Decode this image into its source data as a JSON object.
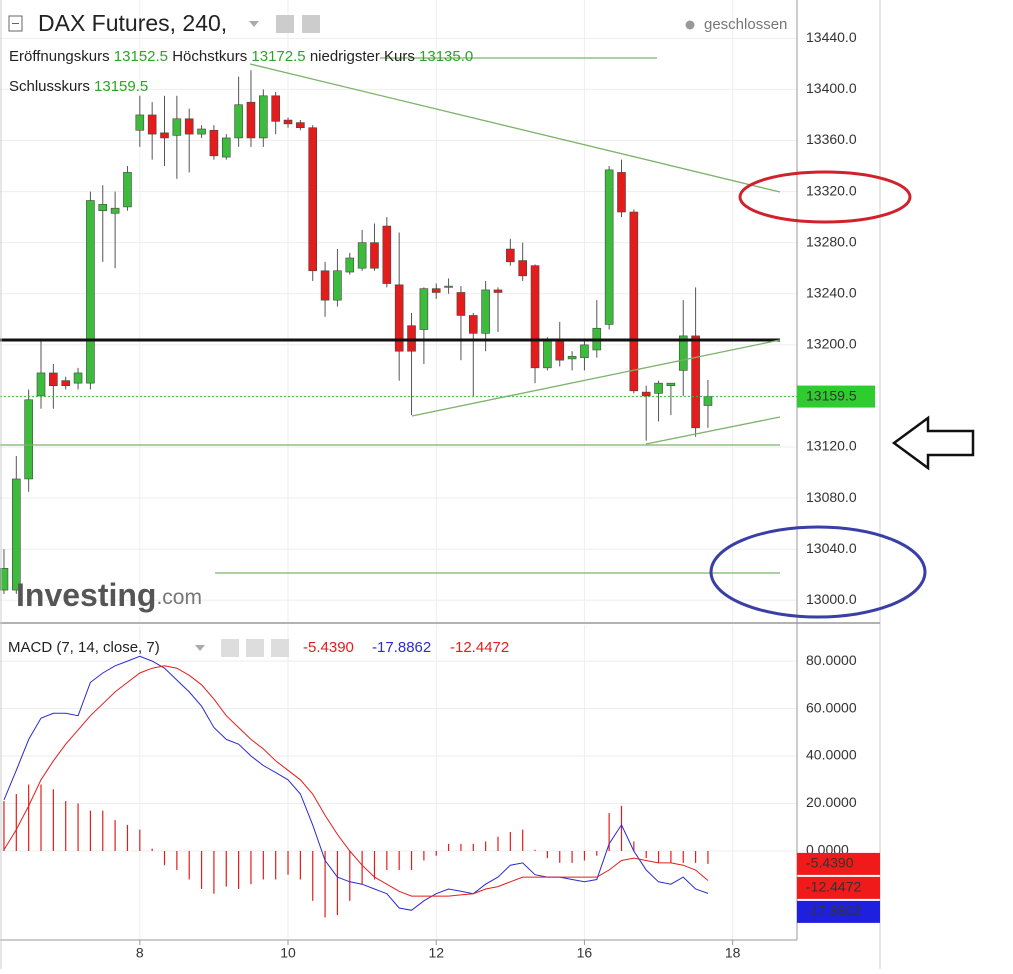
{
  "header": {
    "title": "DAX Futures, 240,",
    "status": "geschlossen",
    "open_label": "Eröffnungskurs",
    "open": "13152.5",
    "high_label": "Höchstkurs",
    "high": "13172.5",
    "low_label": "niedrigster Kurs",
    "low": "13135.0",
    "close_label": "Schlusskurs",
    "close": "13159.5"
  },
  "watermark": {
    "brand": "Investing",
    "suffix": ".com"
  },
  "chart_data": [
    {
      "type": "candlestick",
      "title": "DAX Futures, 240,",
      "up_color": "#3dbb3d",
      "down_color": "#e51c1c",
      "open": [
        13008,
        13008,
        13095,
        13160,
        13178,
        13172,
        13170,
        13170,
        13305,
        13303,
        13308,
        13368,
        13380,
        13366,
        13364,
        13377,
        13365,
        13368,
        13347,
        13362,
        13390,
        13362,
        13395,
        13376,
        13374,
        13370,
        13258,
        13235,
        13257,
        13260,
        13280,
        13293,
        13247,
        13215,
        13212,
        13244,
        13245,
        13241,
        13223,
        13209,
        13243,
        13275,
        13266,
        13262,
        13182,
        13204,
        13189,
        13190,
        13196,
        13216,
        13335,
        13304,
        13163,
        13162,
        13168,
        13180,
        13207,
        13152.5
      ],
      "high": [
        13040,
        13113,
        13165,
        13205,
        13185,
        13175,
        13182,
        13320,
        13325,
        13320,
        13340,
        13395,
        13390,
        13395,
        13395,
        13385,
        13372,
        13372,
        13365,
        13410,
        13415,
        13400,
        13398,
        13378,
        13376,
        13372,
        13265,
        13275,
        13272,
        13290,
        13295,
        13300,
        13288,
        13225,
        13245,
        13248,
        13252,
        13246,
        13225,
        13250,
        13245,
        13283,
        13280,
        13263,
        13206,
        13218,
        13195,
        13205,
        13235,
        13340,
        13345,
        13306,
        13168,
        13172,
        13170,
        13235,
        13245,
        13172.5
      ],
      "low": [
        13005,
        13005,
        13085,
        13150,
        13150,
        13165,
        13165,
        13165,
        13265,
        13260,
        13305,
        13355,
        13345,
        13340,
        13330,
        13335,
        13362,
        13345,
        13345,
        13355,
        13355,
        13355,
        13365,
        13370,
        13368,
        13250,
        13222,
        13230,
        13255,
        13258,
        13258,
        13245,
        13172,
        13145,
        13185,
        13236,
        13240,
        13188,
        13160,
        13195,
        13210,
        13262,
        13250,
        13170,
        13180,
        13183,
        13180,
        13180,
        13190,
        13212,
        13300,
        13162,
        13125,
        13140,
        13145,
        13160,
        13128,
        13135
      ],
      "close": [
        13025,
        13095,
        13157,
        13178,
        13168,
        13168,
        13178,
        13313,
        13310,
        13307,
        13335,
        13380,
        13365,
        13362,
        13377,
        13365,
        13369,
        13348,
        13362,
        13388,
        13362,
        13395,
        13375,
        13373,
        13370,
        13258,
        13235,
        13258,
        13268,
        13280,
        13260,
        13248,
        13195,
        13195,
        13244,
        13241,
        13246,
        13223,
        13209,
        13243,
        13241,
        13265,
        13254,
        13182,
        13204,
        13188,
        13191,
        13200,
        13213,
        13337,
        13304,
        13164,
        13160,
        13170,
        13170,
        13207,
        13135,
        13159.5
      ],
      "xlim": [
        -0.32,
        64.21
      ],
      "ylim": [
        12983,
        13470
      ],
      "yticks": [
        {
          "value": 13000,
          "label": "13000.0"
        },
        {
          "value": 13040,
          "label": "13040.0"
        },
        {
          "value": 13080,
          "label": "13080.0"
        },
        {
          "value": 13120,
          "label": "13120.0"
        },
        {
          "value": 13160,
          "label": "13160.0"
        },
        {
          "value": 13200,
          "label": "13200.0"
        },
        {
          "value": 13240,
          "label": "13240.0"
        },
        {
          "value": 13280,
          "label": "13280.0"
        },
        {
          "value": 13320,
          "label": "13320.0"
        },
        {
          "value": 13360,
          "label": "13360.0"
        },
        {
          "value": 13400,
          "label": "13400.0"
        },
        {
          "value": 13440,
          "label": "13440.0"
        }
      ],
      "grid": true
    },
    {
      "type": "macd",
      "title": "MACD (7, 14, close, 7)",
      "xlim": [
        -0.32,
        64.21
      ],
      "ylim": [
        -37.5,
        95.2
      ],
      "xticks": [
        {
          "value": 11,
          "label": "8"
        },
        {
          "value": 23,
          "label": "10"
        },
        {
          "value": 35,
          "label": "12"
        },
        {
          "value": 47,
          "label": "16"
        },
        {
          "value": 59,
          "label": "18"
        }
      ],
      "yticks": [
        {
          "value": 0,
          "label": "0.0000"
        },
        {
          "value": 20,
          "label": "20.0000"
        },
        {
          "value": 40,
          "label": "40.0000"
        },
        {
          "value": 60,
          "label": "60.0000"
        },
        {
          "value": 80,
          "label": "80.0000"
        }
      ],
      "grid": true,
      "series": [
        {
          "name": "Histogram",
          "kind": "histogram",
          "color": "#e51c1c",
          "last_value_label": "-5.4390",
          "values": [
            21,
            24,
            28,
            28,
            26,
            21,
            20,
            17,
            17,
            13,
            11,
            9,
            1,
            -6,
            -8,
            -12,
            -16,
            -18,
            -15,
            -16,
            -14,
            -12,
            -12,
            -10,
            -12,
            -21,
            -28,
            -27,
            -21,
            -14,
            -12,
            -8,
            -8,
            -8,
            -4,
            -2,
            3,
            3,
            3,
            4,
            6,
            8,
            9,
            0.5,
            -3,
            -5,
            -5,
            -4,
            -2,
            16,
            19,
            4,
            -3,
            -5,
            -5,
            -5,
            -5,
            -5.439
          ]
        },
        {
          "name": "MACD",
          "kind": "line",
          "color": "#2b2bd0",
          "last_value_label": "-17.8862",
          "values": [
            21.5,
            34,
            47,
            56,
            58,
            58,
            57,
            71,
            75,
            78,
            80,
            82,
            80,
            77,
            72,
            67,
            61,
            52,
            47,
            45,
            40,
            36,
            33,
            30,
            24,
            11,
            -4,
            -11,
            -13,
            -14,
            -16,
            -18,
            -24,
            -25,
            -21,
            -18,
            -16,
            -17,
            -18,
            -14,
            -11,
            -6,
            -5,
            -10,
            -11,
            -11,
            -12,
            -13,
            -12,
            3,
            11,
            0,
            -8,
            -13,
            -14,
            -11,
            -16,
            -17.8862
          ]
        },
        {
          "name": "Signal",
          "kind": "line",
          "color": "#e51c1c",
          "last_value_label": "-12.4472",
          "values": [
            0.5,
            9,
            19,
            30,
            38,
            45,
            51,
            57,
            62,
            67,
            71,
            75,
            77,
            78,
            77,
            74,
            70,
            64,
            57,
            52,
            47,
            43,
            38,
            34,
            30,
            24,
            15,
            7,
            0,
            -6,
            -11,
            -14,
            -17,
            -19,
            -19,
            -19,
            -19,
            -18.5,
            -18,
            -16,
            -15,
            -13,
            -11,
            -11,
            -11,
            -11,
            -11,
            -11,
            -11,
            -8,
            -4,
            -3,
            -4,
            -5,
            -5,
            -6,
            -8,
            -12.4472
          ]
        }
      ]
    }
  ]
}
